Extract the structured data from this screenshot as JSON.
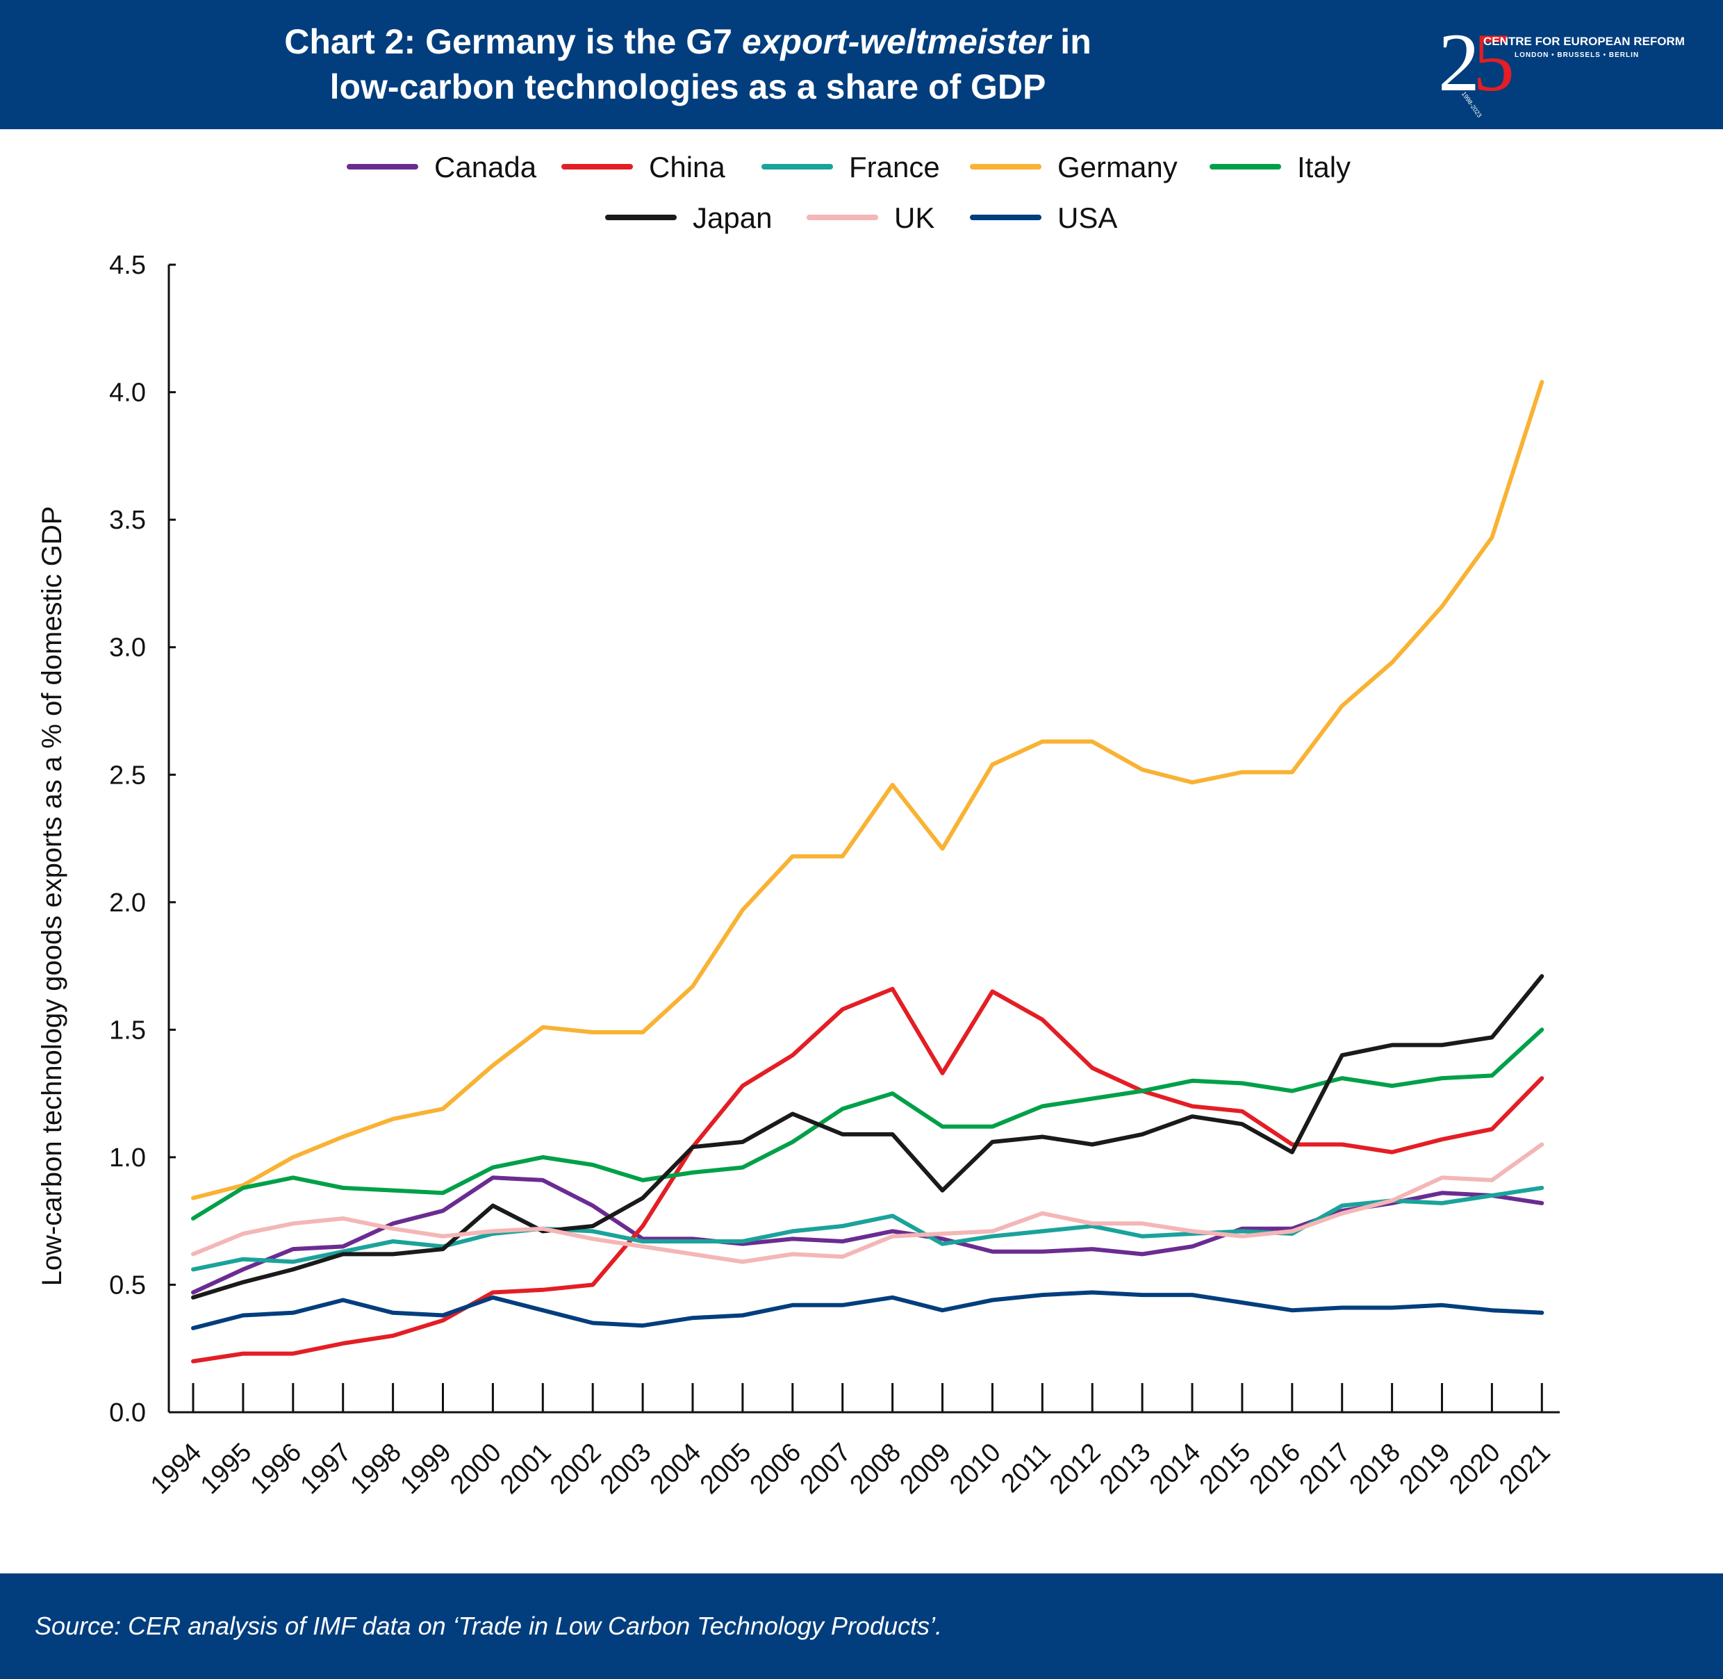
{
  "header": {
    "title_line1_a": "Chart 2: Germany is the G7 ",
    "title_line1_em": "export-weltmeister",
    "title_line1_b": " in",
    "title_line2": "low-carbon technologies as a share of GDP",
    "logo": {
      "digits_2": "2",
      "digits_5": "5",
      "name": "CENTRE FOR EUROPEAN REFORM",
      "cities": "LONDON • BRUSSELS • BERLIN",
      "years": "1998-2023"
    }
  },
  "footer": {
    "source": "Source: CER analysis of IMF data on ‘Trade in Low Carbon Technology Products’."
  },
  "chart_data": {
    "type": "line",
    "title": "Chart 2: Germany is the G7 export-weltmeister in low-carbon technologies as a share of GDP",
    "xlabel": "",
    "ylabel": "Low-carbon technology goods exports as a % of domestic GDP",
    "ylim": [
      0,
      4.5
    ],
    "yticks": [
      "0.0",
      "0.5",
      "1.0",
      "1.5",
      "2.0",
      "2.5",
      "3.0",
      "3.5",
      "4.0",
      "4.5"
    ],
    "grid": false,
    "legend_position": "top-center",
    "x": [
      "1994",
      "1995",
      "1996",
      "1997",
      "1998",
      "1999",
      "2000",
      "2001",
      "2002",
      "2003",
      "2004",
      "2005",
      "2006",
      "2007",
      "2008",
      "2009",
      "2010",
      "2011",
      "2012",
      "2013",
      "2014",
      "2015",
      "2016",
      "2017",
      "2018",
      "2019",
      "2020",
      "2021"
    ],
    "series": [
      {
        "name": "Canada",
        "color": "#6b2c91",
        "values": [
          0.47,
          0.56,
          0.64,
          0.65,
          0.74,
          0.79,
          0.92,
          0.91,
          0.81,
          0.68,
          0.68,
          0.66,
          0.68,
          0.67,
          0.71,
          0.68,
          0.63,
          0.63,
          0.64,
          0.62,
          0.65,
          0.72,
          0.72,
          0.79,
          0.82,
          0.86,
          0.85,
          0.82
        ]
      },
      {
        "name": "China",
        "color": "#e31e24",
        "values": [
          0.2,
          0.23,
          0.23,
          0.27,
          0.3,
          0.36,
          0.47,
          0.48,
          0.5,
          0.73,
          1.04,
          1.28,
          1.4,
          1.58,
          1.66,
          1.33,
          1.65,
          1.54,
          1.35,
          1.26,
          1.2,
          1.18,
          1.05,
          1.05,
          1.02,
          1.07,
          1.11,
          1.31
        ]
      },
      {
        "name": "France",
        "color": "#1aa39a",
        "values": [
          0.56,
          0.6,
          0.59,
          0.63,
          0.67,
          0.65,
          0.7,
          0.72,
          0.71,
          0.67,
          0.67,
          0.67,
          0.71,
          0.73,
          0.77,
          0.66,
          0.69,
          0.71,
          0.73,
          0.69,
          0.7,
          0.71,
          0.7,
          0.81,
          0.83,
          0.82,
          0.85,
          0.88
        ]
      },
      {
        "name": "Germany",
        "color": "#f9b233",
        "values": [
          0.84,
          0.89,
          1.0,
          1.08,
          1.15,
          1.19,
          1.36,
          1.51,
          1.49,
          1.49,
          1.67,
          1.97,
          2.18,
          2.18,
          2.46,
          2.21,
          2.54,
          2.63,
          2.63,
          2.52,
          2.47,
          2.51,
          2.51,
          2.77,
          2.94,
          3.16,
          3.43,
          4.04
        ]
      },
      {
        "name": "Italy",
        "color": "#00a049",
        "values": [
          0.76,
          0.88,
          0.92,
          0.88,
          0.87,
          0.86,
          0.96,
          1.0,
          0.97,
          0.91,
          0.94,
          0.96,
          1.06,
          1.19,
          1.25,
          1.12,
          1.12,
          1.2,
          1.23,
          1.26,
          1.3,
          1.29,
          1.26,
          1.31,
          1.28,
          1.31,
          1.32,
          1.5
        ]
      },
      {
        "name": "Japan",
        "color": "#1a1a1a",
        "values": [
          0.45,
          0.51,
          0.56,
          0.62,
          0.62,
          0.64,
          0.81,
          0.71,
          0.73,
          0.84,
          1.04,
          1.06,
          1.17,
          1.09,
          1.09,
          0.87,
          1.06,
          1.08,
          1.05,
          1.09,
          1.16,
          1.13,
          1.02,
          1.4,
          1.44,
          1.44,
          1.47,
          1.71
        ]
      },
      {
        "name": "UK",
        "color": "#f4b6b6",
        "values": [
          0.62,
          0.7,
          0.74,
          0.76,
          0.72,
          0.69,
          0.71,
          0.72,
          0.68,
          0.65,
          0.62,
          0.59,
          0.62,
          0.61,
          0.69,
          0.7,
          0.71,
          0.78,
          0.74,
          0.74,
          0.71,
          0.69,
          0.71,
          0.78,
          0.83,
          0.92,
          0.91,
          1.05
        ]
      },
      {
        "name": "USA",
        "color": "#023e7d",
        "values": [
          0.33,
          0.38,
          0.39,
          0.44,
          0.39,
          0.38,
          0.45,
          0.4,
          0.35,
          0.34,
          0.37,
          0.38,
          0.42,
          0.42,
          0.45,
          0.4,
          0.44,
          0.46,
          0.47,
          0.46,
          0.46,
          0.43,
          0.4,
          0.41,
          0.41,
          0.42,
          0.4,
          0.39
        ]
      }
    ]
  }
}
